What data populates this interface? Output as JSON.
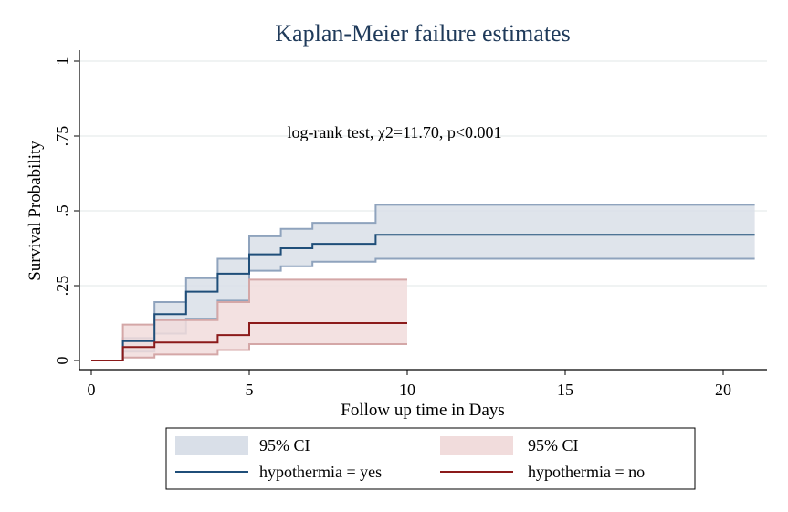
{
  "chart_data": {
    "type": "step",
    "title": "Kaplan-Meier failure estimates",
    "xlabel": "Follow up time in Days",
    "ylabel": "Survival Probability",
    "xlim": [
      0,
      21
    ],
    "ylim": [
      0,
      1
    ],
    "x_ticks": [
      0,
      5,
      10,
      15,
      20
    ],
    "x_tick_labels": [
      "0",
      "5",
      "10",
      "15",
      "20"
    ],
    "y_ticks": [
      0,
      0.25,
      0.5,
      0.75,
      1
    ],
    "y_tick_labels": [
      "0",
      ".25",
      ".5",
      ".75",
      "1"
    ],
    "grid": true,
    "annotation": "log-rank test, χ2=11.70, p<0.001",
    "series": [
      {
        "name": "hypothermia = yes",
        "color": "#1f4e79",
        "ci_color": "#d9dfe8",
        "ci_edge_color": "#8fa3bd",
        "x": [
          0,
          1,
          2,
          3,
          4,
          5,
          6,
          7,
          9,
          21
        ],
        "y": [
          0,
          0.065,
          0.155,
          0.23,
          0.29,
          0.355,
          0.375,
          0.39,
          0.42,
          0.42
        ],
        "lower": [
          0,
          0.03,
          0.09,
          0.14,
          0.2,
          0.3,
          0.315,
          0.33,
          0.34,
          0.34
        ],
        "upper": [
          0,
          0.075,
          0.195,
          0.275,
          0.34,
          0.415,
          0.44,
          0.46,
          0.52,
          0.52
        ]
      },
      {
        "name": "hypothermia = no",
        "color": "#8b1a1a",
        "ci_color": "#f1dcdc",
        "ci_edge_color": "#d4a7a7",
        "x": [
          0,
          1,
          2,
          4,
          5,
          10
        ],
        "y": [
          0,
          0.045,
          0.06,
          0.085,
          0.125,
          0.125
        ],
        "lower": [
          0,
          0.01,
          0.02,
          0.035,
          0.055,
          0.055
        ],
        "upper": [
          0,
          0.12,
          0.135,
          0.195,
          0.27,
          0.27
        ]
      }
    ],
    "legend": {
      "placement": "bottom",
      "items": [
        {
          "label": "95% CI",
          "type": "band",
          "series": 0
        },
        {
          "label": "95% CI",
          "type": "band",
          "series": 1
        },
        {
          "label": "hypothermia = yes",
          "type": "line",
          "series": 0
        },
        {
          "label": "hypothermia = no",
          "type": "line",
          "series": 1
        }
      ]
    }
  }
}
